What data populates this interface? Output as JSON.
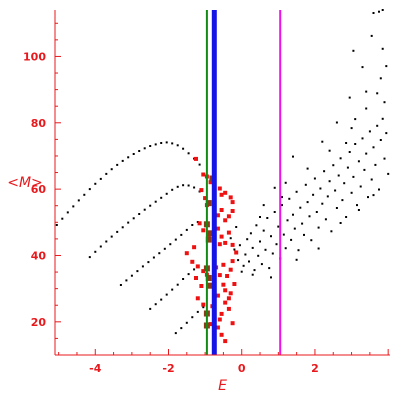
{
  "chart_data": {
    "type": "scatter",
    "title": "",
    "xlabel": "E",
    "ylabel": "<M>",
    "xlim": [
      -5.1,
      4.05
    ],
    "ylim": [
      10,
      114
    ],
    "x_ticks": [
      -4,
      -2,
      0,
      2
    ],
    "x_tick_labels": [
      "-4",
      "-2",
      "0",
      "2"
    ],
    "y_ticks": [
      20,
      40,
      60,
      80,
      100
    ],
    "y_tick_labels": [
      "20",
      "40",
      "60",
      "80",
      "100"
    ],
    "grid": false,
    "legend": "none",
    "colors": {
      "axis": "#e8191d",
      "black": "#000000",
      "red": "#ee1111",
      "brown": "#8b3a1a"
    },
    "vertical_lines": [
      {
        "x": -0.95,
        "color": "#138a13"
      },
      {
        "x": -0.75,
        "color": "#1414e6"
      },
      {
        "x": 1.05,
        "color": "#ee11ee"
      }
    ],
    "series": [
      {
        "color": "#000000",
        "points": [
          [
            -5.05,
            49.2
          ],
          [
            -4.9,
            51.1
          ],
          [
            -4.75,
            53
          ],
          [
            -4.6,
            54.8
          ],
          [
            -4.45,
            56.6
          ],
          [
            -4.3,
            58.3
          ],
          [
            -4.15,
            60
          ],
          [
            -4,
            61.6
          ],
          [
            -3.85,
            63.1
          ],
          [
            -3.7,
            64.6
          ],
          [
            -3.55,
            66
          ],
          [
            -3.4,
            67.3
          ],
          [
            -3.25,
            68.5
          ],
          [
            -3.1,
            69.6
          ],
          [
            -2.95,
            70.6
          ],
          [
            -2.8,
            71.5
          ],
          [
            -2.65,
            72.3
          ],
          [
            -2.5,
            73
          ],
          [
            -2.35,
            73.5
          ],
          [
            -2.2,
            73.9
          ],
          [
            -2.05,
            74.1
          ],
          [
            -1.9,
            73.8
          ],
          [
            -1.75,
            73.2
          ],
          [
            -1.6,
            72.2
          ],
          [
            -1.45,
            70.8
          ],
          [
            -1.3,
            69.2
          ],
          [
            -1.15,
            67.4
          ],
          [
            -4.15,
            39.5
          ],
          [
            -4,
            41.1
          ],
          [
            -3.85,
            42.7
          ],
          [
            -3.7,
            44.2
          ],
          [
            -3.55,
            45.7
          ],
          [
            -3.4,
            47.1
          ],
          [
            -3.25,
            48.5
          ],
          [
            -3.1,
            49.9
          ],
          [
            -2.95,
            51.2
          ],
          [
            -2.8,
            52.5
          ],
          [
            -2.65,
            53.8
          ],
          [
            -2.5,
            55
          ],
          [
            -2.35,
            56.2
          ],
          [
            -2.2,
            57.4
          ],
          [
            -2.05,
            58.6
          ],
          [
            -1.9,
            59.8
          ],
          [
            -1.75,
            60.7
          ],
          [
            -1.6,
            61.2
          ],
          [
            -1.45,
            61.1
          ],
          [
            -1.3,
            60.5
          ],
          [
            -1.15,
            59.3
          ],
          [
            -3.3,
            31.1
          ],
          [
            -3.15,
            32.5
          ],
          [
            -3,
            33.9
          ],
          [
            -2.85,
            35.3
          ],
          [
            -2.7,
            36.7
          ],
          [
            -2.55,
            38
          ],
          [
            -2.4,
            39.4
          ],
          [
            -2.25,
            40.7
          ],
          [
            -2.1,
            42
          ],
          [
            -1.95,
            43.4
          ],
          [
            -1.8,
            44.8
          ],
          [
            -1.65,
            46.2
          ],
          [
            -1.5,
            47.7
          ],
          [
            -1.35,
            49.2
          ],
          [
            -1.2,
            50.1
          ],
          [
            -2.5,
            23.9
          ],
          [
            -2.35,
            25.3
          ],
          [
            -2.2,
            26.7
          ],
          [
            -2.05,
            28.2
          ],
          [
            -1.9,
            29.7
          ],
          [
            -1.75,
            31.2
          ],
          [
            -1.6,
            32.9
          ],
          [
            -1.45,
            34.4
          ],
          [
            -1.3,
            35.8
          ],
          [
            -1.8,
            16.6
          ],
          [
            -1.65,
            18.1
          ],
          [
            -1.5,
            19.7
          ],
          [
            -1.35,
            21.4
          ],
          [
            -1.2,
            23
          ],
          [
            -1.05,
            24.4
          ],
          [
            -0.3,
            45.2
          ],
          [
            -0.2,
            41.8
          ],
          [
            -0.1,
            38.6
          ],
          [
            -0.05,
            43.1
          ],
          [
            0.05,
            36.9
          ],
          [
            0.1,
            40.3
          ],
          [
            0.15,
            44.9
          ],
          [
            0.2,
            38.2
          ],
          [
            0.25,
            46.7
          ],
          [
            0.3,
            42.3
          ],
          [
            0.35,
            35.6
          ],
          [
            0.4,
            49.1
          ],
          [
            0.45,
            39.9
          ],
          [
            0.5,
            44.2
          ],
          [
            0.55,
            37.4
          ],
          [
            0.6,
            47.5
          ],
          [
            0.65,
            41.7
          ],
          [
            0.7,
            51.3
          ],
          [
            0.75,
            36.2
          ],
          [
            0.8,
            45.8
          ],
          [
            0.85,
            40.6
          ],
          [
            0.9,
            53.1
          ],
          [
            0.95,
            43.4
          ],
          [
            1.0,
            48.7
          ],
          [
            1.05,
            39.1
          ],
          [
            1.1,
            55.2
          ],
          [
            1.15,
            46.3
          ],
          [
            1.2,
            42.2
          ],
          [
            1.25,
            50.6
          ],
          [
            1.3,
            57.1
          ],
          [
            1.35,
            44.7
          ],
          [
            1.4,
            52.3
          ],
          [
            1.45,
            48.1
          ],
          [
            1.5,
            59.2
          ],
          [
            1.55,
            41.6
          ],
          [
            1.6,
            54.4
          ],
          [
            1.65,
            49.6
          ],
          [
            1.7,
            46.2
          ],
          [
            1.75,
            61.3
          ],
          [
            1.8,
            56.1
          ],
          [
            1.85,
            51.8
          ],
          [
            1.9,
            44.6
          ],
          [
            1.95,
            58.3
          ],
          [
            2.0,
            63.2
          ],
          [
            2.05,
            53.1
          ],
          [
            2.1,
            48.4
          ],
          [
            2.15,
            60.2
          ],
          [
            2.2,
            55.6
          ],
          [
            2.25,
            65.4
          ],
          [
            2.3,
            50.9
          ],
          [
            2.35,
            57.8
          ],
          [
            2.4,
            62.4
          ],
          [
            2.45,
            47.3
          ],
          [
            2.5,
            67.2
          ],
          [
            2.55,
            59.6
          ],
          [
            2.6,
            54.3
          ],
          [
            2.65,
            64.1
          ],
          [
            2.7,
            69.3
          ],
          [
            2.75,
            56.7
          ],
          [
            2.8,
            61.8
          ],
          [
            2.85,
            51.6
          ],
          [
            2.9,
            66.5
          ],
          [
            2.95,
            71.2
          ],
          [
            3.0,
            58.9
          ],
          [
            3.05,
            63.7
          ],
          [
            3.1,
            73.6
          ],
          [
            3.15,
            55.2
          ],
          [
            3.2,
            68.4
          ],
          [
            3.25,
            60.8
          ],
          [
            3.3,
            75.3
          ],
          [
            3.35,
            65.8
          ],
          [
            3.4,
            70.7
          ],
          [
            3.45,
            57.6
          ],
          [
            3.5,
            77.4
          ],
          [
            3.55,
            62.9
          ],
          [
            3.6,
            72.6
          ],
          [
            3.65,
            67.3
          ],
          [
            3.7,
            79.1
          ],
          [
            3.75,
            59.9
          ],
          [
            3.8,
            74.8
          ],
          [
            3.85,
            81.2
          ],
          [
            3.9,
            69.2
          ],
          [
            3.95,
            76.9
          ],
          [
            4.0,
            64.6
          ],
          [
            0.3,
            34.2
          ],
          [
            0.5,
            51.6
          ],
          [
            0.8,
            33.4
          ],
          [
            1.2,
            61.9
          ],
          [
            1.5,
            38.7
          ],
          [
            1.8,
            66.2
          ],
          [
            2.1,
            42.1
          ],
          [
            2.4,
            71.6
          ],
          [
            2.7,
            49.8
          ],
          [
            3.0,
            78.4
          ],
          [
            3.2,
            53.7
          ],
          [
            3.4,
            84.3
          ],
          [
            3.6,
            58.2
          ],
          [
            3.7,
            88.9
          ],
          [
            3.8,
            93.4
          ],
          [
            3.9,
            86.2
          ],
          [
            3.95,
            97.1
          ],
          [
            2.95,
            87.6
          ],
          [
            3.3,
            96.8
          ],
          [
            3.55,
            106.2
          ],
          [
            3.75,
            113.5
          ],
          [
            3.85,
            114
          ],
          [
            3.6,
            113.1
          ],
          [
            3.05,
            101.7
          ],
          [
            3.4,
            89.4
          ],
          [
            2.2,
            74.3
          ],
          [
            2.6,
            80.1
          ],
          [
            1.4,
            69.8
          ],
          [
            1.1,
            57.6
          ],
          [
            0.6,
            55.2
          ],
          [
            0.0,
            35.1
          ],
          [
            -0.15,
            48.6
          ],
          [
            0.9,
            60.4
          ],
          [
            3.85,
            102.3
          ],
          [
            3.1,
            81.1
          ],
          [
            2.85,
            73.9
          ]
        ]
      },
      {
        "color": "#ee1111",
        "points": [
          [
            -1.25,
            69.1
          ],
          [
            -1.05,
            64.4
          ],
          [
            -0.95,
            63.8
          ],
          [
            -0.85,
            62.1
          ],
          [
            -0.55,
            58.3
          ],
          [
            -0.6,
            60.2
          ],
          [
            -0.45,
            58.9
          ],
          [
            -0.3,
            57.5
          ],
          [
            -0.25,
            56.1
          ],
          [
            -1.1,
            59.7
          ],
          [
            -1.0,
            57.3
          ],
          [
            -0.95,
            55.2
          ],
          [
            -0.65,
            52.1
          ],
          [
            -0.55,
            53.7
          ],
          [
            -0.45,
            50.6
          ],
          [
            -0.35,
            51.8
          ],
          [
            -0.25,
            53.4
          ],
          [
            -1.15,
            49.7
          ],
          [
            -1.05,
            47.6
          ],
          [
            -0.9,
            46.2
          ],
          [
            -0.65,
            48.1
          ],
          [
            -0.55,
            45.7
          ],
          [
            -0.45,
            43.8
          ],
          [
            -0.35,
            46.9
          ],
          [
            -0.25,
            43.2
          ],
          [
            -1.5,
            40.7
          ],
          [
            -1.35,
            38.1
          ],
          [
            -1.2,
            36.7
          ],
          [
            -1.05,
            35.3
          ],
          [
            -0.95,
            34.2
          ],
          [
            -0.7,
            36.4
          ],
          [
            -0.6,
            34.1
          ],
          [
            -0.5,
            37.2
          ],
          [
            -0.4,
            33.8
          ],
          [
            -0.3,
            35.7
          ],
          [
            -0.25,
            38.3
          ],
          [
            -1.2,
            27.1
          ],
          [
            -1.05,
            25.2
          ],
          [
            -0.95,
            22.6
          ],
          [
            -0.8,
            24.7
          ],
          [
            -0.65,
            27.9
          ],
          [
            -0.55,
            22.4
          ],
          [
            -0.45,
            25.8
          ],
          [
            -0.35,
            23.9
          ],
          [
            -0.25,
            19.6
          ],
          [
            -0.55,
            16.1
          ],
          [
            -0.45,
            14.2
          ],
          [
            -0.65,
            18.3
          ],
          [
            -0.3,
            28.6
          ],
          [
            -0.2,
            31.4
          ],
          [
            -0.15,
            40.9
          ],
          [
            -0.5,
            31.2
          ],
          [
            -0.75,
            40.2
          ],
          [
            -0.6,
            43.4
          ],
          [
            -1.25,
            33.2
          ],
          [
            -1.3,
            42.5
          ],
          [
            -0.45,
            29.5
          ],
          [
            -0.35,
            27.1
          ],
          [
            -0.85,
            19.3
          ],
          [
            -1.1,
            30.8
          ],
          [
            -0.6,
            20.7
          ]
        ]
      },
      {
        "color": "#8b3a1a",
        "points": [
          [
            -0.95,
            49.4
          ],
          [
            -0.9,
            44.8
          ],
          [
            -0.95,
            36.1
          ],
          [
            -0.9,
            33.2
          ],
          [
            -0.95,
            22.5
          ],
          [
            -0.85,
            46.7
          ],
          [
            -0.9,
            55.8
          ],
          [
            -0.85,
            30.9
          ],
          [
            -0.95,
            18.9
          ],
          [
            -0.8,
            63.2
          ]
        ]
      }
    ]
  }
}
